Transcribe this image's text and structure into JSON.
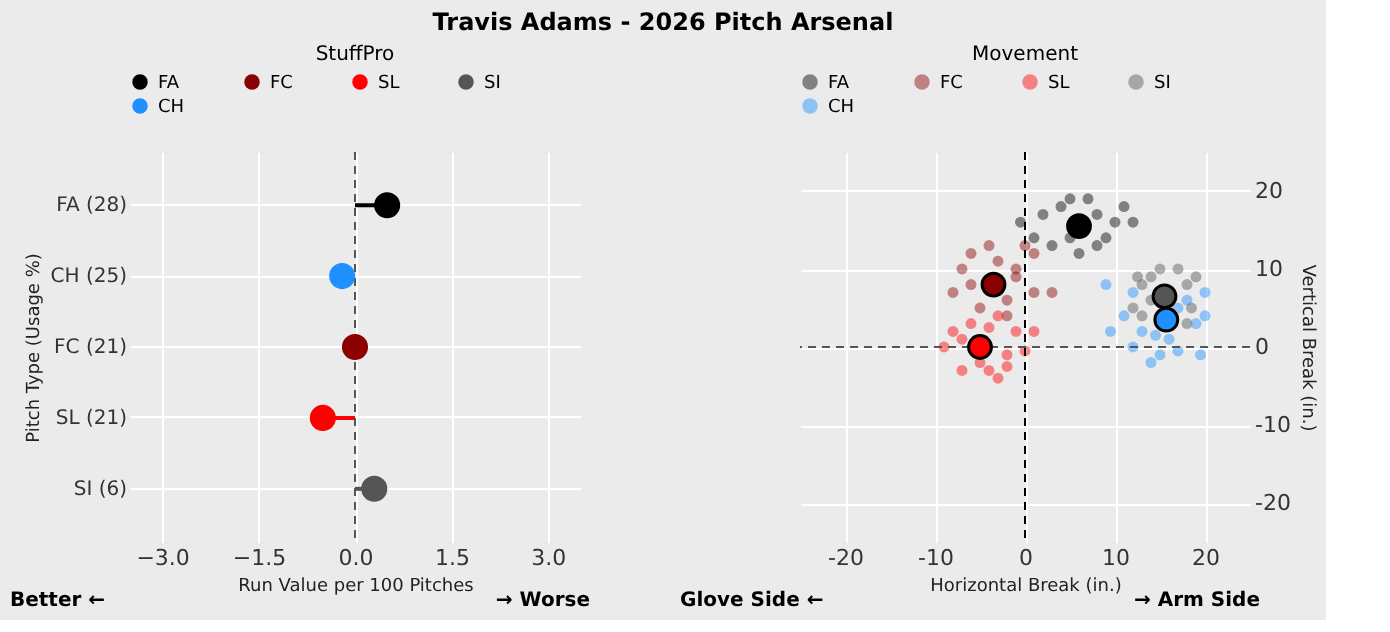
{
  "chart_data": [
    {
      "type": "lollipop",
      "orientation": "horizontal",
      "title": "StuffPro",
      "xlabel": "Run Value per 100 Pitches",
      "ylabel": "Pitch Type (Usage %)",
      "annotations": [
        "Travis Adams - 2026 Pitch Arsenal",
        "Better ←",
        "→ Worse"
      ],
      "categories": [
        "FA (28)",
        "CH (25)",
        "FC (21)",
        "SL (21)",
        "SI (6)"
      ],
      "xlim": [
        -3.5,
        3.5
      ],
      "xticks": [
        {
          "value": -3,
          "label": "−3.0"
        },
        {
          "value": -1.5,
          "label": "−1.5"
        },
        {
          "value": 0,
          "label": "0.0"
        },
        {
          "value": 1.5,
          "label": "1.5"
        },
        {
          "value": 3,
          "label": "3.0"
        }
      ],
      "ref_lines": [
        {
          "axis": "x",
          "value": 0,
          "color": "#555555",
          "line_style": "dashed"
        }
      ],
      "grid": true,
      "legend": "top",
      "series": [
        {
          "name": "FA",
          "color": "#000000",
          "values": [
            0.5,
            null,
            null,
            null,
            null
          ]
        },
        {
          "name": "FC",
          "color": "#8b0000",
          "values": [
            null,
            null,
            0.0,
            null,
            null
          ]
        },
        {
          "name": "SL",
          "color": "#ff0000",
          "values": [
            null,
            null,
            null,
            -0.5,
            null
          ]
        },
        {
          "name": "SI",
          "color": "#555555",
          "values": [
            null,
            null,
            null,
            null,
            0.3
          ]
        },
        {
          "name": "CH",
          "color": "#1e90ff",
          "values": [
            null,
            -0.2,
            null,
            null,
            null
          ]
        }
      ]
    },
    {
      "type": "scatter",
      "title": "Movement",
      "xlabel": "Horizontal Break (in.)",
      "ylabel": "Vertical Break (in.)",
      "annotations": [
        "Glove Side ←",
        "→ Arm Side"
      ],
      "xlim": [
        -25,
        25
      ],
      "xticks": [
        -20,
        -10,
        0,
        10,
        20
      ],
      "ylim": [
        -25,
        25
      ],
      "yticks": [
        -20,
        -10,
        0,
        10,
        20
      ],
      "ref_lines": [
        {
          "axis": "x",
          "value": 0,
          "color": "#000000",
          "line_style": "dashed"
        },
        {
          "axis": "y",
          "value": 0,
          "color": "#555555",
          "line_style": "dashed"
        }
      ],
      "grid": true,
      "legend": "top",
      "marker": "circle",
      "series": [
        {
          "name": "FA",
          "color": "#000000",
          "x": [
            1,
            2,
            3,
            4,
            5,
            7,
            8,
            9,
            10,
            11,
            12,
            6,
            -0.5,
            5,
            8
          ],
          "values": [
            14,
            17,
            13,
            18,
            19,
            19,
            17,
            14,
            16,
            18,
            16,
            12,
            16,
            14,
            13
          ]
        },
        {
          "name": "FC",
          "color": "#8b0000",
          "x": [
            -8,
            -7,
            -6,
            -5,
            -4,
            -3,
            -2,
            -1,
            0,
            1,
            -6,
            -2,
            1,
            3,
            -1
          ],
          "values": [
            7,
            10,
            12,
            5,
            13,
            11,
            6,
            10,
            13,
            12,
            8,
            4,
            7,
            7,
            9
          ]
        },
        {
          "name": "SL",
          "color": "#ff0000",
          "x": [
            -9,
            -8,
            -7,
            -6,
            -5,
            -4,
            -3,
            -2,
            -3,
            -1,
            0,
            1,
            -2,
            -7,
            -4
          ],
          "values": [
            0,
            2,
            -3,
            3,
            -2,
            2.5,
            4,
            -1,
            -4,
            2,
            -0.5,
            2,
            -2.5,
            1,
            -3
          ]
        },
        {
          "name": "SI",
          "color": "#555555",
          "x": [
            12,
            13,
            14,
            15,
            12.5,
            17,
            18,
            19,
            18,
            13,
            18.5,
            14
          ],
          "values": [
            5,
            8,
            9,
            10,
            9,
            10,
            8,
            9,
            3,
            4,
            5,
            6
          ]
        },
        {
          "name": "CH",
          "color": "#1e90ff",
          "x": [
            9,
            9.5,
            12,
            12,
            13,
            14,
            15,
            16,
            17,
            18,
            19,
            20,
            20,
            19.5,
            17,
            14.5,
            11
          ],
          "values": [
            8,
            2,
            7,
            0,
            2,
            -2,
            -1,
            1,
            5,
            6,
            3,
            7,
            4,
            -1,
            -0.5,
            1.5,
            4
          ]
        },
        {
          "color": "#000000",
          "x": [
            6
          ],
          "values": [
            15.5
          ]
        },
        {
          "color": "#8b0000",
          "x": [
            -3.5
          ],
          "values": [
            8
          ]
        },
        {
          "color": "#ff0000",
          "x": [
            -5
          ],
          "values": [
            0
          ]
        },
        {
          "color": "#555555",
          "x": [
            15.5
          ],
          "values": [
            6.5
          ]
        },
        {
          "color": "#1e90ff",
          "x": [
            15.7
          ],
          "values": [
            3.5
          ]
        }
      ]
    }
  ]
}
